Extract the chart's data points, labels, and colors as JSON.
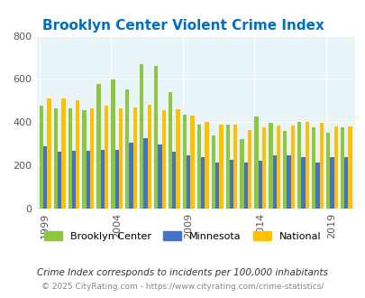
{
  "title": "Brooklyn Center Violent Crime Index",
  "years": [
    1999,
    2000,
    2001,
    2002,
    2003,
    2004,
    2005,
    2006,
    2007,
    2008,
    2009,
    2010,
    2011,
    2012,
    2013,
    2014,
    2015,
    2016,
    2017,
    2018,
    2019,
    2020
  ],
  "brooklyn_center": [
    478,
    462,
    462,
    457,
    575,
    597,
    550,
    670,
    660,
    540,
    435,
    388,
    340,
    390,
    320,
    428,
    395,
    360,
    400,
    375,
    350,
    375
  ],
  "minnesota": [
    290,
    265,
    268,
    268,
    272,
    270,
    305,
    325,
    295,
    265,
    245,
    240,
    215,
    225,
    215,
    222,
    245,
    245,
    240,
    215,
    237,
    237
  ],
  "national": [
    510,
    508,
    500,
    465,
    475,
    465,
    469,
    480,
    455,
    460,
    430,
    403,
    388,
    388,
    363,
    375,
    383,
    383,
    400,
    395,
    380,
    380
  ],
  "brooklyn_color": "#8dc63f",
  "minnesota_color": "#4472c4",
  "national_color": "#ffc000",
  "bg_color": "#e8f4f8",
  "title_color": "#0070c0",
  "tick_label_color": "#555555",
  "subtitle": "Crime Index corresponds to incidents per 100,000 inhabitants",
  "footer": "© 2025 CityRating.com - https://www.cityrating.com/crime-statistics/",
  "ylim": [
    0,
    800
  ],
  "yticks": [
    0,
    200,
    400,
    600,
    800
  ],
  "xtick_years": [
    1999,
    2004,
    2009,
    2014,
    2019
  ]
}
